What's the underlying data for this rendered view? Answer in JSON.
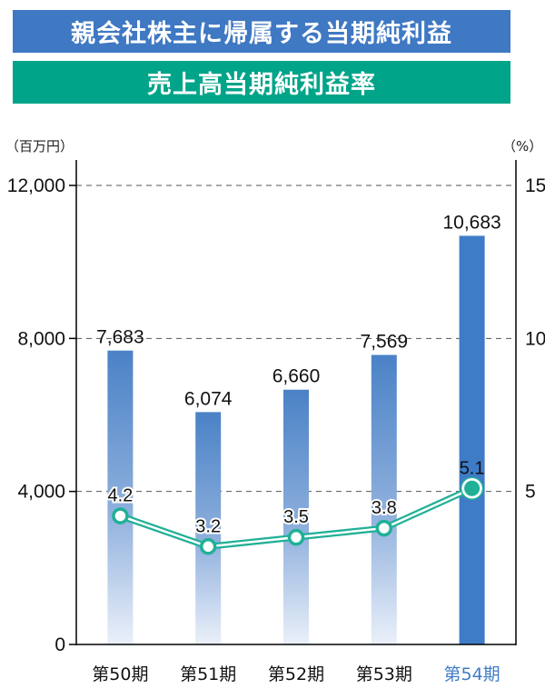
{
  "titles": {
    "line1": "親会社株主に帰属する当期純利益",
    "line2": "売上高当期純利益率"
  },
  "colors": {
    "title1_bg": "#3f78c3",
    "title2_bg": "#00a489",
    "bar": "#4a82c6",
    "bar_highlight": "#3f7cc7",
    "line": "#20b097",
    "highlight_label": "#3f7cc7"
  },
  "chart_data": {
    "type": "bar",
    "categories": [
      "第50期",
      "第51期",
      "第52期",
      "第53期",
      "第54期"
    ],
    "series": [
      {
        "type": "bar",
        "axis": "left",
        "values": [
          7683,
          6074,
          6660,
          7569,
          10683
        ],
        "labels": [
          "7,683",
          "6,074",
          "6,660",
          "7,569",
          "10,683"
        ]
      },
      {
        "type": "line",
        "axis": "right",
        "values": [
          4.2,
          3.2,
          3.5,
          3.8,
          5.1
        ],
        "labels": [
          "4.2",
          "3.2",
          "3.5",
          "3.8",
          "5.1"
        ]
      }
    ],
    "left_axis": {
      "unit": "（百万円）",
      "ylim": [
        0,
        12000
      ],
      "ticks": [
        0,
        4000,
        8000,
        12000
      ],
      "tick_labels": [
        "0",
        "4,000",
        "8,000",
        "12,000"
      ]
    },
    "right_axis": {
      "unit": "（%）",
      "ylim": [
        0,
        15
      ],
      "ticks": [
        5,
        10,
        15
      ],
      "tick_labels": [
        "5",
        "10",
        "15"
      ]
    },
    "grid": "dashed horizontal",
    "highlight_index": 4
  }
}
